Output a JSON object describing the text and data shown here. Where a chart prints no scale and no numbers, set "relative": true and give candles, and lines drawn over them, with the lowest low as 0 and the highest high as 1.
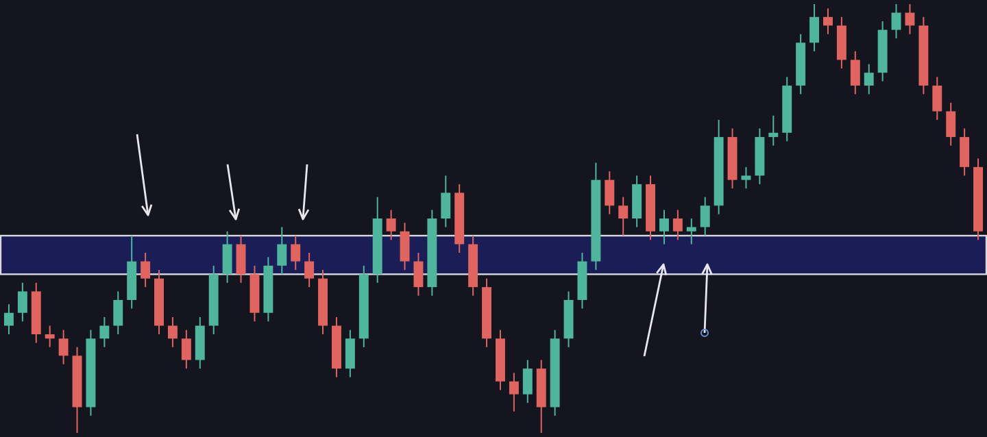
{
  "chart_data": {
    "type": "candlestick",
    "relative": true,
    "categories": [
      null,
      null,
      null,
      null,
      null,
      null,
      null,
      null,
      null,
      null,
      null,
      null,
      null,
      null,
      null,
      null,
      null,
      null,
      null,
      null,
      null,
      null,
      null,
      null,
      null,
      null,
      null,
      null,
      null,
      null,
      null,
      null,
      null,
      null,
      null,
      null,
      null,
      null,
      null,
      null,
      null,
      null,
      null,
      null,
      null,
      null,
      null,
      null,
      null,
      null,
      null,
      null,
      null,
      null,
      null,
      null,
      null,
      null,
      null,
      null,
      null,
      null,
      null,
      null,
      null,
      null,
      null,
      null,
      null,
      null,
      null,
      null
    ],
    "ohlc": [
      [
        0.25,
        0.3,
        0.23,
        0.28
      ],
      [
        0.28,
        0.35,
        0.26,
        0.33
      ],
      [
        0.33,
        0.35,
        0.21,
        0.23
      ],
      [
        0.23,
        0.25,
        0.2,
        0.22
      ],
      [
        0.22,
        0.24,
        0.16,
        0.18
      ],
      [
        0.18,
        0.2,
        0.0,
        0.06
      ],
      [
        0.06,
        0.24,
        0.04,
        0.22
      ],
      [
        0.22,
        0.27,
        0.2,
        0.25
      ],
      [
        0.25,
        0.33,
        0.23,
        0.31
      ],
      [
        0.31,
        0.46,
        0.29,
        0.4
      ],
      [
        0.4,
        0.42,
        0.34,
        0.36
      ],
      [
        0.36,
        0.38,
        0.23,
        0.25
      ],
      [
        0.25,
        0.27,
        0.2,
        0.22
      ],
      [
        0.22,
        0.24,
        0.15,
        0.17
      ],
      [
        0.17,
        0.27,
        0.15,
        0.25
      ],
      [
        0.25,
        0.39,
        0.23,
        0.37
      ],
      [
        0.37,
        0.47,
        0.35,
        0.44
      ],
      [
        0.44,
        0.46,
        0.35,
        0.37
      ],
      [
        0.37,
        0.39,
        0.26,
        0.28
      ],
      [
        0.28,
        0.41,
        0.26,
        0.39
      ],
      [
        0.39,
        0.48,
        0.37,
        0.44
      ],
      [
        0.44,
        0.46,
        0.38,
        0.4
      ],
      [
        0.4,
        0.42,
        0.34,
        0.36
      ],
      [
        0.36,
        0.38,
        0.23,
        0.25
      ],
      [
        0.25,
        0.27,
        0.13,
        0.15
      ],
      [
        0.15,
        0.24,
        0.13,
        0.22
      ],
      [
        0.22,
        0.39,
        0.2,
        0.37
      ],
      [
        0.37,
        0.55,
        0.35,
        0.5
      ],
      [
        0.5,
        0.52,
        0.45,
        0.47
      ],
      [
        0.47,
        0.49,
        0.38,
        0.4
      ],
      [
        0.4,
        0.42,
        0.32,
        0.34
      ],
      [
        0.34,
        0.52,
        0.32,
        0.5
      ],
      [
        0.5,
        0.6,
        0.48,
        0.56
      ],
      [
        0.56,
        0.58,
        0.42,
        0.44
      ],
      [
        0.44,
        0.46,
        0.32,
        0.34
      ],
      [
        0.34,
        0.36,
        0.2,
        0.22
      ],
      [
        0.22,
        0.24,
        0.1,
        0.12
      ],
      [
        0.12,
        0.14,
        0.05,
        0.09
      ],
      [
        0.09,
        0.17,
        0.07,
        0.15
      ],
      [
        0.15,
        0.17,
        0.0,
        0.06
      ],
      [
        0.06,
        0.24,
        0.04,
        0.22
      ],
      [
        0.22,
        0.33,
        0.2,
        0.31
      ],
      [
        0.31,
        0.42,
        0.29,
        0.4
      ],
      [
        0.4,
        0.63,
        0.38,
        0.59
      ],
      [
        0.59,
        0.61,
        0.51,
        0.53
      ],
      [
        0.53,
        0.55,
        0.46,
        0.5
      ],
      [
        0.5,
        0.6,
        0.48,
        0.58
      ],
      [
        0.58,
        0.6,
        0.45,
        0.47
      ],
      [
        0.47,
        0.52,
        0.44,
        0.5
      ],
      [
        0.5,
        0.52,
        0.45,
        0.47
      ],
      [
        0.47,
        0.5,
        0.44,
        0.48
      ],
      [
        0.48,
        0.55,
        0.46,
        0.53
      ],
      [
        0.53,
        0.73,
        0.51,
        0.69
      ],
      [
        0.69,
        0.71,
        0.57,
        0.59
      ],
      [
        0.59,
        0.62,
        0.57,
        0.6
      ],
      [
        0.6,
        0.71,
        0.58,
        0.69
      ],
      [
        0.69,
        0.74,
        0.67,
        0.7
      ],
      [
        0.7,
        0.83,
        0.68,
        0.81
      ],
      [
        0.81,
        0.93,
        0.79,
        0.91
      ],
      [
        0.91,
        1.0,
        0.89,
        0.97
      ],
      [
        0.97,
        0.99,
        0.93,
        0.95
      ],
      [
        0.95,
        0.97,
        0.85,
        0.87
      ],
      [
        0.87,
        0.89,
        0.79,
        0.81
      ],
      [
        0.81,
        0.86,
        0.79,
        0.84
      ],
      [
        0.84,
        0.96,
        0.82,
        0.94
      ],
      [
        0.94,
        1.0,
        0.92,
        0.98
      ],
      [
        0.98,
        1.0,
        0.93,
        0.95
      ],
      [
        0.95,
        0.97,
        0.79,
        0.81
      ],
      [
        0.81,
        0.83,
        0.73,
        0.75
      ],
      [
        0.75,
        0.77,
        0.67,
        0.69
      ],
      [
        0.69,
        0.71,
        0.6,
        0.62
      ],
      [
        0.62,
        0.64,
        0.45,
        0.47
      ]
    ],
    "bands": [
      {
        "axis": "y",
        "from": 0.37,
        "to": 0.46,
        "color": "#1c2060"
      }
    ]
  }
}
